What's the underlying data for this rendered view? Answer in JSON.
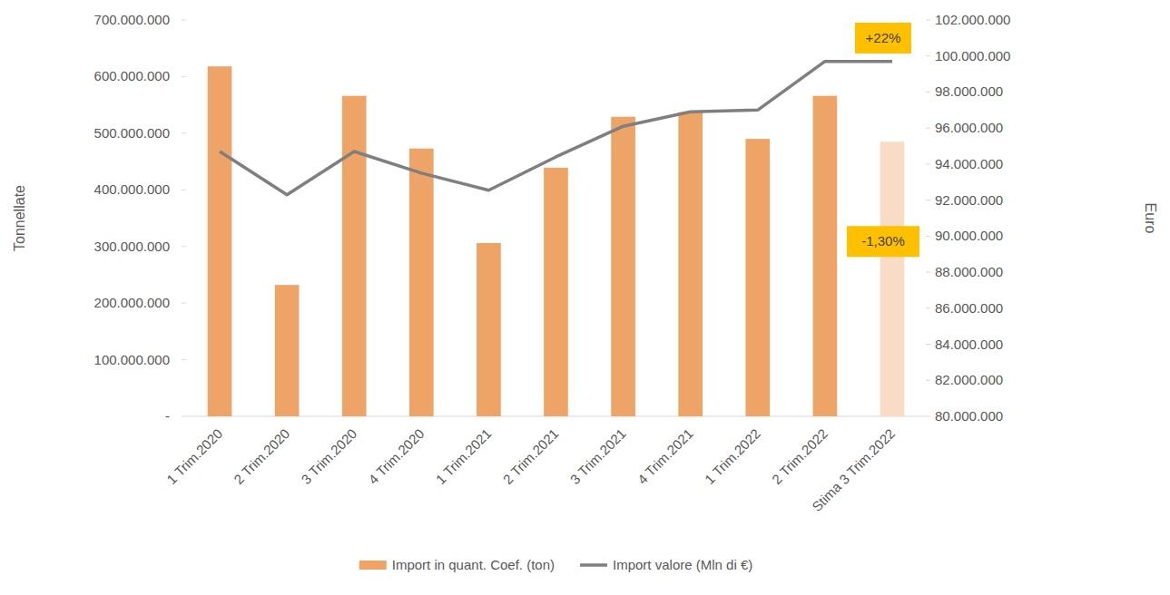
{
  "chart_data": {
    "type": "bar",
    "categories": [
      "1 Trim.2020",
      "2 Trim.2020",
      "3 Trim.2020",
      "4 Trim.2020",
      "1 Trim.2021",
      "2 Trim.2021",
      "3 Trim.2021",
      "4 Trim.2021",
      "1 Trim.2022",
      "2 Trim.2022",
      "Stima 3 Trim.2022"
    ],
    "series": [
      {
        "name": "Import in quant. Coef. (ton)",
        "type": "bar",
        "colors": [
          "#efa467",
          "#efa467",
          "#efa467",
          "#efa467",
          "#efa467",
          "#efa467",
          "#efa467",
          "#efa467",
          "#efa467",
          "#efa467",
          "#f8dcc5"
        ],
        "values": [
          618000000,
          232000000,
          566000000,
          473000000,
          306000000,
          439000000,
          529000000,
          537000000,
          490000000,
          566000000,
          485000000
        ]
      },
      {
        "name": "Import valore (Mln di €)",
        "type": "line",
        "color": "#7f7f7f",
        "axis": "y2",
        "values": [
          94700000,
          92300000,
          94700000,
          93500000,
          92550000,
          94400000,
          96100000,
          96900000,
          97000000,
          99700000,
          99700000
        ]
      }
    ],
    "y_label": "Tonnellate",
    "y2_label": "Euro",
    "ylim": [
      0,
      700000000
    ],
    "yticks": [
      {
        "value": 0,
        "label": "-"
      },
      {
        "value": 100000000,
        "label": "100.000.000"
      },
      {
        "value": 200000000,
        "label": "200.000.000"
      },
      {
        "value": 300000000,
        "label": "300.000.000"
      },
      {
        "value": 400000000,
        "label": "400.000.000"
      },
      {
        "value": 500000000,
        "label": "500.000.000"
      },
      {
        "value": 600000000,
        "label": "600.000.000"
      },
      {
        "value": 700000000,
        "label": "700.000.000"
      }
    ],
    "y2lim": [
      80000000,
      102000000
    ],
    "y2ticks": [
      {
        "value": 80000000,
        "label": "80.000.000"
      },
      {
        "value": 82000000,
        "label": "82.000.000"
      },
      {
        "value": 84000000,
        "label": "84.000.000"
      },
      {
        "value": 86000000,
        "label": "86.000.000"
      },
      {
        "value": 88000000,
        "label": "88.000.000"
      },
      {
        "value": 90000000,
        "label": "90.000.000"
      },
      {
        "value": 92000000,
        "label": "92.000.000"
      },
      {
        "value": 94000000,
        "label": "94.000.000"
      },
      {
        "value": 96000000,
        "label": "96.000.000"
      },
      {
        "value": 98000000,
        "label": "98.000.000"
      },
      {
        "value": 100000000,
        "label": "100.000.000"
      },
      {
        "value": 102000000,
        "label": "102.000.000"
      }
    ],
    "annotations": [
      {
        "text": "+22%"
      },
      {
        "text": "-1,30%"
      }
    ],
    "legend": "bottom",
    "grid": false
  }
}
